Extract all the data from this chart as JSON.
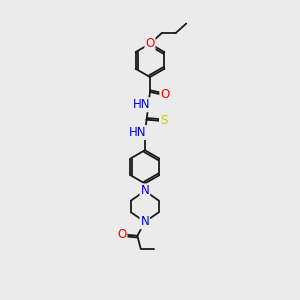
{
  "background_color": "#ebebeb",
  "bond_color": "#1a1a1a",
  "atom_colors": {
    "O": "#ff0000",
    "N": "#0000ee",
    "S": "#cccc00",
    "C": "#1a1a1a"
  },
  "figsize": [
    3.0,
    3.0
  ],
  "dpi": 100,
  "lw": 1.3,
  "fs": 8.5
}
